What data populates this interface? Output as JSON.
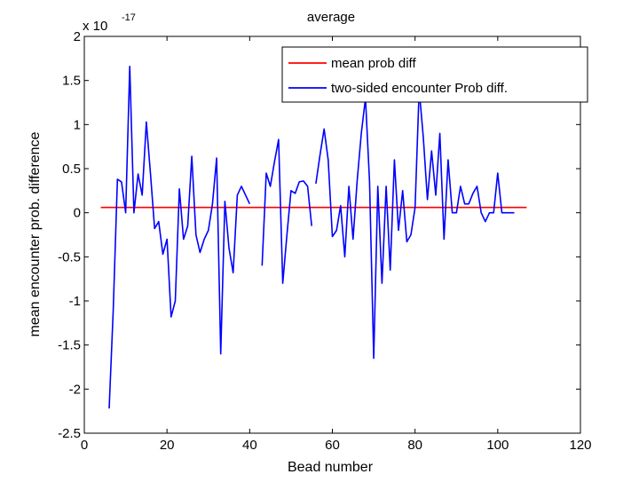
{
  "chart_data": {
    "type": "line",
    "title": "average",
    "xlabel": "Bead number",
    "ylabel": "mean encounter prob. difference",
    "y_multiplier_base": "x 10",
    "y_multiplier_exponent": "-17",
    "xlim": [
      0,
      120
    ],
    "ylim": [
      -2.5,
      2
    ],
    "xticks": [
      0,
      20,
      40,
      60,
      80,
      100,
      120
    ],
    "yticks": [
      -2.5,
      -2,
      -1.5,
      -1,
      -0.5,
      0,
      0.5,
      1,
      1.5,
      2
    ],
    "xtick_labels": [
      "0",
      "20",
      "40",
      "60",
      "80",
      "100",
      "120"
    ],
    "ytick_labels": [
      "-2.5",
      "-2",
      "-1.5",
      "-1",
      "-0.5",
      "0",
      "0.5",
      "1",
      "1.5",
      "2"
    ],
    "grid": false,
    "legend_position": "top-right",
    "series": [
      {
        "name": "mean prob diff",
        "color": "#ff0000",
        "x": [
          4,
          107
        ],
        "y": [
          0.06,
          0.06
        ]
      },
      {
        "name": "two-sided encounter Prob diff.",
        "color": "#0000ff",
        "x": [
          6,
          7,
          8,
          9,
          10,
          11,
          12,
          13,
          14,
          15,
          16,
          17,
          18,
          19,
          20,
          21,
          22,
          23,
          24,
          25,
          26,
          27,
          28,
          29,
          30,
          31,
          32,
          33,
          34,
          35,
          36,
          37,
          38,
          39,
          40,
          null,
          43,
          44,
          45,
          46,
          47,
          48,
          49,
          50,
          51,
          52,
          53,
          54,
          55,
          null,
          56,
          57,
          58,
          59,
          60,
          61,
          62,
          63,
          64,
          65,
          66,
          67,
          68,
          69,
          70,
          71,
          72,
          73,
          74,
          75,
          76,
          77,
          78,
          79,
          80,
          81,
          82,
          83,
          84,
          85,
          86,
          87,
          88,
          89,
          90,
          91,
          92,
          93,
          94,
          95,
          96,
          97,
          98,
          99,
          100,
          101,
          102,
          103,
          104
        ],
        "y": [
          -2.22,
          -1.1,
          0.38,
          0.35,
          0.0,
          1.66,
          0.0,
          0.44,
          0.2,
          1.03,
          0.45,
          -0.18,
          -0.1,
          -0.47,
          -0.3,
          -1.18,
          -1.0,
          0.27,
          -0.3,
          -0.15,
          0.64,
          -0.25,
          -0.45,
          -0.3,
          -0.2,
          0.1,
          0.62,
          -1.6,
          0.13,
          -0.4,
          -0.68,
          0.2,
          0.3,
          0.2,
          0.1,
          null,
          -0.6,
          0.45,
          0.3,
          0.58,
          0.83,
          -0.8,
          -0.25,
          0.25,
          0.22,
          0.35,
          0.36,
          0.3,
          -0.15,
          null,
          0.33,
          0.65,
          0.95,
          0.6,
          -0.27,
          -0.2,
          0.08,
          -0.5,
          0.3,
          -0.3,
          0.37,
          0.9,
          1.3,
          0.35,
          -1.65,
          0.3,
          -0.8,
          0.3,
          -0.65,
          0.6,
          -0.2,
          0.25,
          -0.33,
          -0.25,
          0.06,
          1.4,
          0.85,
          0.15,
          0.7,
          0.2,
          0.9,
          -0.3,
          0.6,
          0.0,
          0.0,
          0.3,
          0.1,
          0.1,
          0.22,
          0.3,
          0.0,
          -0.1,
          0.0,
          0.0,
          0.45,
          0.0,
          0.0,
          0.0,
          0.0
        ]
      }
    ]
  }
}
